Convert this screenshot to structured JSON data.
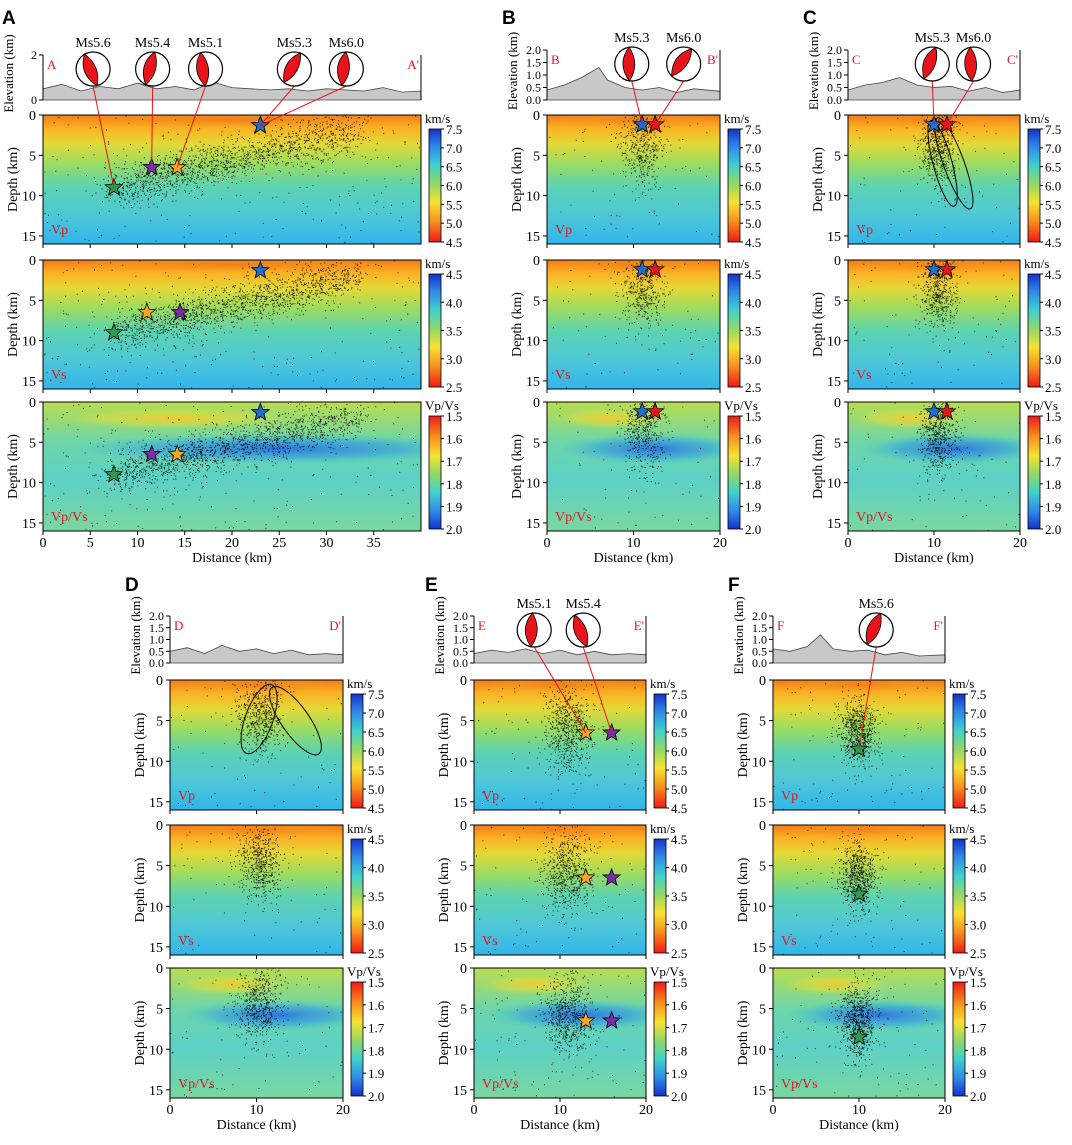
{
  "figure": {
    "title": "",
    "labels": {
      "elevation": "Elevation (km)",
      "depth": "Depth (km)",
      "distance": "Distance (km)",
      "vel_unit": "km/s",
      "ratio_unit": "Vp/Vs",
      "vp": "Vp",
      "vs": "Vs",
      "vpvs": "Vp/Vs"
    },
    "ticks": {
      "elev_full": [
        "0",
        "2"
      ],
      "elev_fine": [
        "0.0",
        "0.5",
        "1.0",
        "1.5",
        "2.0"
      ],
      "depth": [
        "0",
        "5",
        "10",
        "15"
      ],
      "vp_scale": [
        "4.5",
        "5.0",
        "5.5",
        "6.0",
        "6.5",
        "7.0",
        "7.5"
      ],
      "vs_scale": [
        "2.5",
        "3.0",
        "3.5",
        "4.0",
        "4.5"
      ],
      "ratio_scale": [
        "1.5",
        "1.6",
        "1.7",
        "1.8",
        "1.9",
        "2.0"
      ],
      "dist_40": [
        "0",
        "5",
        "10",
        "15",
        "20",
        "25",
        "30",
        "35"
      ],
      "dist_20": [
        "0",
        "10",
        "20"
      ]
    },
    "colors": {
      "star_blue": "#1f6fd1",
      "star_red": "#e8141c",
      "star_orange": "#f5a623",
      "star_purple": "#7b2fa4",
      "star_green": "#2e9a52",
      "beachball": "#e8141c",
      "section_label": "#e8141c"
    }
  },
  "chart_data": [
    {
      "panel": "A",
      "type": "scatter",
      "start_label": "A",
      "end_label": "A'",
      "x_range": [
        0,
        40
      ],
      "depth_range": [
        0,
        16
      ],
      "elev_ticks": "full",
      "topography": [
        [
          0,
          0.5
        ],
        [
          2,
          0.7
        ],
        [
          4,
          0.4
        ],
        [
          6,
          0.6
        ],
        [
          8,
          0.5
        ],
        [
          10,
          0.75
        ],
        [
          12,
          0.5
        ],
        [
          14,
          0.6
        ],
        [
          16,
          0.45
        ],
        [
          18,
          0.8
        ],
        [
          20,
          0.55
        ],
        [
          22,
          0.5
        ],
        [
          24,
          0.45
        ],
        [
          26,
          0.5
        ],
        [
          28,
          0.4
        ],
        [
          30,
          0.5
        ],
        [
          32,
          0.45
        ],
        [
          34,
          0.4
        ],
        [
          36,
          0.55
        ],
        [
          38,
          0.35
        ],
        [
          40,
          0.4
        ]
      ],
      "events": [
        {
          "mag": "Ms5.6",
          "dist": 7.5,
          "depth": 9.0,
          "color": "green",
          "ball_x": 5.3
        },
        {
          "mag": "Ms5.4",
          "dist": 11.5,
          "depth": 6.5,
          "color": "purple",
          "ball_x": 11.6
        },
        {
          "mag": "Ms5.1",
          "dist": 14.2,
          "depth": 6.5,
          "color": "orange",
          "ball_x": 17.2
        },
        {
          "mag": "Ms5.3",
          "dist": 23.0,
          "depth": 1.3,
          "color": "blue",
          "ball_x": 26.6
        },
        {
          "mag": "Ms6.0",
          "dist": 23.0,
          "depth": 1.3,
          "color": "blue",
          "ball_x": 32.1
        }
      ],
      "vs_events": [
        {
          "dist": 7.5,
          "depth": 9.0,
          "color": "green"
        },
        {
          "dist": 11.0,
          "depth": 6.5,
          "color": "orange"
        },
        {
          "dist": 14.5,
          "depth": 6.5,
          "color": "purple"
        },
        {
          "dist": 23.0,
          "depth": 1.3,
          "color": "blue"
        }
      ],
      "seismicity": {
        "mode": "dip",
        "x_start": 7.5,
        "x_end": 33.0,
        "z_start": 9.0,
        "z_end": 2.0,
        "spread": 2.2,
        "count": 1700
      }
    },
    {
      "panel": "B",
      "type": "scatter",
      "start_label": "B",
      "end_label": "B'",
      "x_range": [
        0,
        20
      ],
      "depth_range": [
        0,
        16
      ],
      "elev_ticks": "fine",
      "topography": [
        [
          0,
          0.4
        ],
        [
          2,
          0.6
        ],
        [
          4,
          0.9
        ],
        [
          6,
          1.3
        ],
        [
          7,
          0.8
        ],
        [
          9,
          0.5
        ],
        [
          11,
          0.4
        ],
        [
          13,
          0.5
        ],
        [
          15,
          0.3
        ],
        [
          17,
          0.45
        ],
        [
          20,
          0.35
        ]
      ],
      "events": [
        {
          "mag": "Ms5.3",
          "dist": 11.0,
          "depth": 1.2,
          "color": "blue",
          "ball_x": 9.8
        },
        {
          "mag": "Ms6.0",
          "dist": 12.5,
          "depth": 1.2,
          "color": "red",
          "ball_x": 15.8
        }
      ],
      "seismicity": {
        "mode": "blob",
        "cx": 11.0,
        "cz": 3.5,
        "sx": 1.3,
        "sz": 2.5,
        "count": 500
      }
    },
    {
      "panel": "C",
      "type": "scatter",
      "start_label": "C",
      "end_label": "C'",
      "x_range": [
        0,
        20
      ],
      "depth_range": [
        0,
        16
      ],
      "elev_ticks": "fine",
      "topography": [
        [
          0,
          0.4
        ],
        [
          2,
          0.6
        ],
        [
          4,
          0.7
        ],
        [
          6,
          0.9
        ],
        [
          8,
          0.6
        ],
        [
          10,
          0.5
        ],
        [
          12,
          0.55
        ],
        [
          14,
          0.35
        ],
        [
          16,
          0.5
        ],
        [
          18,
          0.3
        ],
        [
          20,
          0.4
        ]
      ],
      "events": [
        {
          "mag": "Ms5.3",
          "dist": 10.0,
          "depth": 1.2,
          "color": "blue",
          "ball_x": 9.8
        },
        {
          "mag": "Ms6.0",
          "dist": 11.5,
          "depth": 1.2,
          "color": "red",
          "ball_x": 14.6
        }
      ],
      "ellipses": [
        {
          "cx": 11.0,
          "cz": 6.0,
          "rx": 1.1,
          "rz": 5.5,
          "rot": -15
        },
        {
          "cx": 12.3,
          "cz": 6.0,
          "rx": 1.2,
          "rz": 6.0,
          "rot": -20
        }
      ],
      "seismicity": {
        "mode": "blob",
        "cx": 10.5,
        "cz": 4.0,
        "sx": 1.1,
        "sz": 2.4,
        "count": 600
      }
    },
    {
      "panel": "D",
      "type": "scatter",
      "start_label": "D",
      "end_label": "D'",
      "x_range": [
        0,
        20
      ],
      "depth_range": [
        0,
        16
      ],
      "elev_ticks": "fine",
      "topography": [
        [
          0,
          0.5
        ],
        [
          2,
          0.65
        ],
        [
          4,
          0.4
        ],
        [
          6,
          0.75
        ],
        [
          8,
          0.5
        ],
        [
          10,
          0.6
        ],
        [
          12,
          0.4
        ],
        [
          14,
          0.55
        ],
        [
          16,
          0.35
        ],
        [
          18,
          0.4
        ],
        [
          20,
          0.35
        ]
      ],
      "events": [],
      "ellipses": [
        {
          "cx": 10.3,
          "cz": 4.8,
          "rx": 1.6,
          "rz": 4.5,
          "rot": 20
        },
        {
          "cx": 14.5,
          "cz": 5.0,
          "rx": 1.6,
          "rz": 5.0,
          "rot": -35
        }
      ],
      "seismicity": {
        "mode": "blob",
        "cx": 10.3,
        "cz": 4.5,
        "sx": 1.3,
        "sz": 2.3,
        "count": 600
      }
    },
    {
      "panel": "E",
      "type": "scatter",
      "start_label": "E",
      "end_label": "E'",
      "x_range": [
        0,
        20
      ],
      "depth_range": [
        0,
        16
      ],
      "elev_ticks": "fine",
      "topography": [
        [
          0,
          0.4
        ],
        [
          2,
          0.55
        ],
        [
          4,
          0.45
        ],
        [
          6,
          0.6
        ],
        [
          8,
          0.4
        ],
        [
          10,
          0.55
        ],
        [
          12,
          0.35
        ],
        [
          14,
          0.5
        ],
        [
          16,
          0.35
        ],
        [
          18,
          0.4
        ],
        [
          20,
          0.35
        ]
      ],
      "events": [
        {
          "mag": "Ms5.1",
          "dist": 13.0,
          "depth": 6.5,
          "color": "orange",
          "ball_x": 7.0
        },
        {
          "mag": "Ms5.4",
          "dist": 16.0,
          "depth": 6.5,
          "color": "purple",
          "ball_x": 12.7
        }
      ],
      "seismicity": {
        "mode": "blob",
        "cx": 10.8,
        "cz": 5.8,
        "sx": 1.4,
        "sz": 2.6,
        "count": 700
      }
    },
    {
      "panel": "F",
      "type": "scatter",
      "start_label": "F",
      "end_label": "F'",
      "x_range": [
        0,
        20
      ],
      "depth_range": [
        0,
        16
      ],
      "elev_ticks": "fine",
      "topography": [
        [
          0,
          0.6
        ],
        [
          2,
          0.5
        ],
        [
          4,
          0.7
        ],
        [
          5.5,
          1.2
        ],
        [
          7,
          0.6
        ],
        [
          9,
          0.5
        ],
        [
          11,
          0.55
        ],
        [
          13,
          0.35
        ],
        [
          15,
          0.45
        ],
        [
          17,
          0.3
        ],
        [
          20,
          0.35
        ]
      ],
      "events": [
        {
          "mag": "Ms5.6",
          "dist": 10.0,
          "depth": 8.5,
          "color": "green",
          "ball_x": 12.0
        }
      ],
      "seismicity": {
        "mode": "blob",
        "cx": 9.8,
        "cz": 6.3,
        "sx": 1.1,
        "sz": 2.2,
        "count": 750
      }
    }
  ]
}
